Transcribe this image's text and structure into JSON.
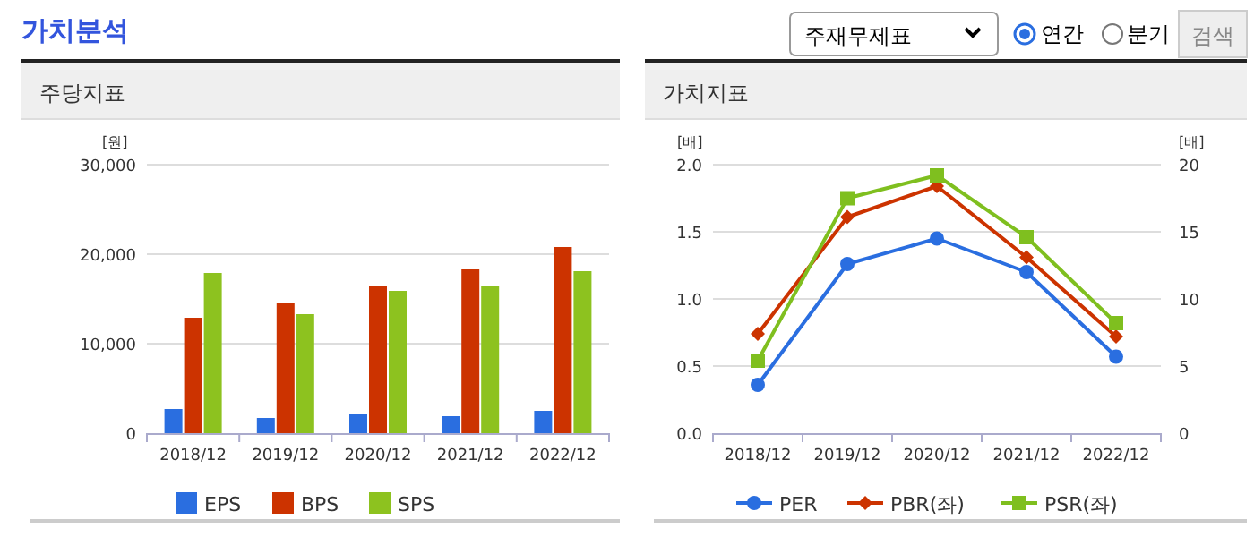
{
  "chart_data": [
    {
      "type": "other",
      "title": "가치분석",
      "annotations": [
        "주재무제표",
        "연간",
        "분기",
        "검색"
      ]
    },
    {
      "type": "bar",
      "title": "주당지표",
      "ylabel": "[원]",
      "categories": [
        "2018/12",
        "2019/12",
        "2020/12",
        "2021/12",
        "2022/12"
      ],
      "series": [
        {
          "name": "EPS",
          "color": "#2a6ee0",
          "values": [
            2700,
            1700,
            2100,
            1900,
            2500
          ]
        },
        {
          "name": "BPS",
          "color": "#cc3300",
          "values": [
            12900,
            14500,
            16500,
            18300,
            20800
          ]
        },
        {
          "name": "SPS",
          "color": "#8dc21f",
          "values": [
            17900,
            13300,
            15900,
            16500,
            18100
          ]
        }
      ],
      "ylim": [
        0,
        30000
      ],
      "yticks": [
        {
          "value": 0,
          "label": "0"
        },
        {
          "value": 10000,
          "label": "10,000"
        },
        {
          "value": 20000,
          "label": "20,000"
        },
        {
          "value": 30000,
          "label": "30,000"
        }
      ],
      "grid": "y",
      "legend": "bottom"
    },
    {
      "type": "line",
      "title": "가치지표",
      "ylabel": "[배]",
      "y2label": "[배]",
      "categories": [
        "2018/12",
        "2019/12",
        "2020/12",
        "2021/12",
        "2022/12"
      ],
      "series": [
        {
          "name": "PER",
          "color": "#2a6ee0",
          "axis": "y2",
          "marker": "circle",
          "values": [
            3.6,
            12.6,
            14.5,
            12.0,
            5.7
          ]
        },
        {
          "name": "PBR(좌)",
          "color": "#cc3300",
          "marker": "diamond",
          "values": [
            0.74,
            1.61,
            1.84,
            1.31,
            0.72
          ]
        },
        {
          "name": "PSR(좌)",
          "color": "#7fbf1f",
          "marker": "square",
          "values": [
            0.54,
            1.75,
            1.92,
            1.46,
            0.82
          ]
        }
      ],
      "ylim": [
        0,
        2
      ],
      "yticks": [
        {
          "value": 0,
          "label": "0.0"
        },
        {
          "value": 0.5,
          "label": "0.5"
        },
        {
          "value": 1,
          "label": "1.0"
        },
        {
          "value": 1.5,
          "label": "1.5"
        },
        {
          "value": 2,
          "label": "2.0"
        }
      ],
      "y2lim": [
        0,
        20
      ],
      "y2ticks": [
        0,
        5,
        10,
        15,
        20
      ],
      "grid": "y",
      "legend": "bottom"
    }
  ]
}
